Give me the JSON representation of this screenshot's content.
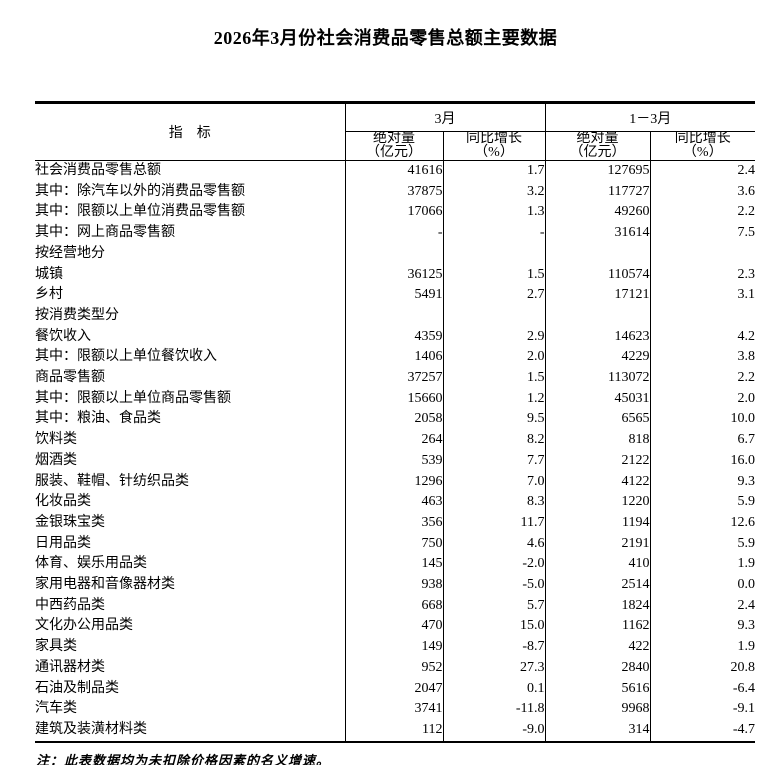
{
  "title": "2026年3月份社会消费品零售总额主要数据",
  "note": "注：此表数据均为未扣除价格因素的名义增速。",
  "table": {
    "header": {
      "indicator": "指　标",
      "col_groups": [
        {
          "label": "3月",
          "abs": {
            "l1": "绝对量",
            "l2": "（亿元）"
          },
          "yoy": {
            "l1": "同比增长",
            "l2": "（%）"
          }
        },
        {
          "label": "1－3月",
          "abs": {
            "l1": "绝对量",
            "l2": "（亿元）"
          },
          "yoy": {
            "l1": "同比增长",
            "l2": "（%）"
          }
        }
      ]
    },
    "rows": [
      {
        "label": "社会消费品零售总额",
        "indent": "0",
        "bold": true,
        "values": [
          "41616",
          "1.7",
          "127695",
          "2.4"
        ]
      },
      {
        "label": "其中：除汽车以外的消费品零售额",
        "indent": "1",
        "bold": false,
        "values": [
          "37875",
          "3.2",
          "117727",
          "3.6"
        ]
      },
      {
        "label": "其中：限额以上单位消费品零售额",
        "indent": "1",
        "bold": false,
        "values": [
          "17066",
          "1.3",
          "49260",
          "2.2"
        ]
      },
      {
        "label": "其中：网上商品零售额",
        "indent": "1",
        "bold": false,
        "values": [
          "-",
          "-",
          "31614",
          "7.5"
        ]
      },
      {
        "label": "按经营地分",
        "indent": "0",
        "bold": false,
        "values": [
          "",
          "",
          "",
          ""
        ]
      },
      {
        "label": "城镇",
        "indent": "1",
        "bold": false,
        "values": [
          "36125",
          "1.5",
          "110574",
          "2.3"
        ]
      },
      {
        "label": "乡村",
        "indent": "1",
        "bold": false,
        "values": [
          "5491",
          "2.7",
          "17121",
          "3.1"
        ]
      },
      {
        "label": "按消费类型分",
        "indent": "0",
        "bold": false,
        "values": [
          "",
          "",
          "",
          ""
        ]
      },
      {
        "label": "餐饮收入",
        "indent": "1",
        "bold": false,
        "values": [
          "4359",
          "2.9",
          "14623",
          "4.2"
        ]
      },
      {
        "label": "其中：限额以上单位餐饮收入",
        "indent": "2",
        "bold": false,
        "values": [
          "1406",
          "2.0",
          "4229",
          "3.8"
        ]
      },
      {
        "label": "商品零售额",
        "indent": "1",
        "bold": false,
        "values": [
          "37257",
          "1.5",
          "113072",
          "2.2"
        ]
      },
      {
        "label": "其中：限额以上单位商品零售额",
        "indent": "2",
        "bold": false,
        "values": [
          "15660",
          "1.2",
          "45031",
          "2.0"
        ]
      },
      {
        "label": "其中：粮油、食品类",
        "indent": "2b",
        "bold": false,
        "values": [
          "2058",
          "9.5",
          "6565",
          "10.0"
        ]
      },
      {
        "label": "饮料类",
        "indent": "3",
        "bold": false,
        "values": [
          "264",
          "8.2",
          "818",
          "6.7"
        ]
      },
      {
        "label": "烟酒类",
        "indent": "3",
        "bold": false,
        "values": [
          "539",
          "7.7",
          "2122",
          "16.0"
        ]
      },
      {
        "label": "服装、鞋帽、针纺织品类",
        "indent": "3",
        "bold": false,
        "values": [
          "1296",
          "7.0",
          "4122",
          "9.3"
        ]
      },
      {
        "label": "化妆品类",
        "indent": "3",
        "bold": false,
        "values": [
          "463",
          "8.3",
          "1220",
          "5.9"
        ]
      },
      {
        "label": "金银珠宝类",
        "indent": "3",
        "bold": false,
        "values": [
          "356",
          "11.7",
          "1194",
          "12.6"
        ]
      },
      {
        "label": "日用品类",
        "indent": "3",
        "bold": false,
        "values": [
          "750",
          "4.6",
          "2191",
          "5.9"
        ]
      },
      {
        "label": "体育、娱乐用品类",
        "indent": "3",
        "bold": false,
        "values": [
          "145",
          "-2.0",
          "410",
          "1.9"
        ]
      },
      {
        "label": "家用电器和音像器材类",
        "indent": "3",
        "bold": false,
        "values": [
          "938",
          "-5.0",
          "2514",
          "0.0"
        ]
      },
      {
        "label": "中西药品类",
        "indent": "3",
        "bold": false,
        "values": [
          "668",
          "5.7",
          "1824",
          "2.4"
        ]
      },
      {
        "label": "文化办公用品类",
        "indent": "3",
        "bold": false,
        "values": [
          "470",
          "15.0",
          "1162",
          "9.3"
        ]
      },
      {
        "label": "家具类",
        "indent": "3",
        "bold": false,
        "values": [
          "149",
          "-8.7",
          "422",
          "1.9"
        ]
      },
      {
        "label": "通讯器材类",
        "indent": "3",
        "bold": false,
        "values": [
          "952",
          "27.3",
          "2840",
          "20.8"
        ]
      },
      {
        "label": "石油及制品类",
        "indent": "3",
        "bold": false,
        "values": [
          "2047",
          "0.1",
          "5616",
          "-6.4"
        ]
      },
      {
        "label": "汽车类",
        "indent": "3",
        "bold": false,
        "values": [
          "3741",
          "-11.8",
          "9968",
          "-9.1"
        ]
      },
      {
        "label": "建筑及装潢材料类",
        "indent": "3",
        "bold": false,
        "values": [
          "112",
          "-9.0",
          "314",
          "-4.7"
        ]
      }
    ]
  }
}
